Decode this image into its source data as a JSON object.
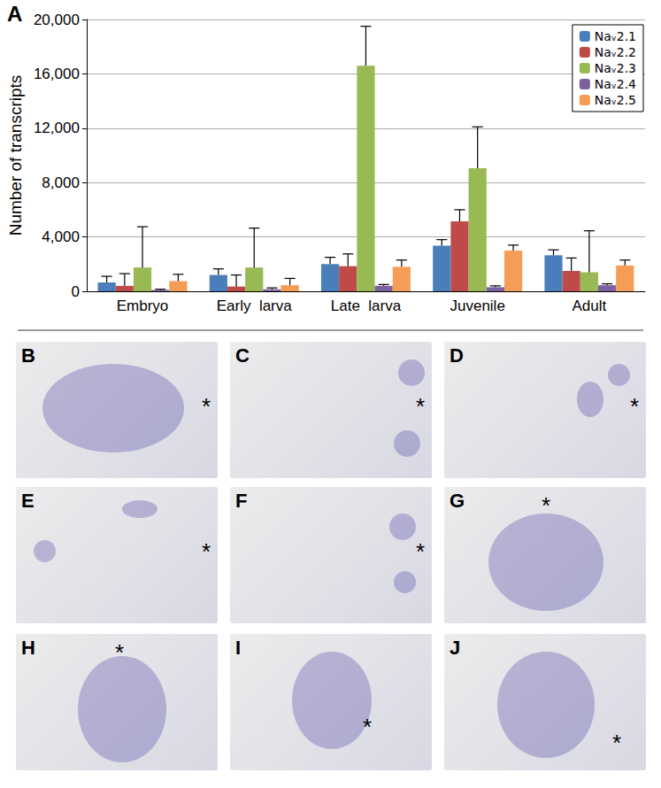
{
  "chart_data": {
    "type": "bar",
    "categories": [
      "Embryo",
      "Early  larva",
      "Late  larva",
      "Juvenile",
      "Adult"
    ],
    "y_label": "Number of transcripts",
    "ylim": [
      0,
      20000
    ],
    "yticks": [
      0,
      {
        "value": 4000,
        "label": "4,000"
      },
      {
        "value": 8000,
        "label": "8,000"
      },
      {
        "value": 12000,
        "label": "12,000"
      },
      {
        "value": 16000,
        "label": "16,000"
      },
      {
        "value": 20000,
        "label": "20,000"
      }
    ],
    "grid": true,
    "legend": "upper right",
    "series": [
      {
        "name": "Naᵥ2.1",
        "color": "#4a7ebb",
        "values": [
          650,
          1200,
          2000,
          3350,
          2650
        ],
        "errors": [
          450,
          450,
          500,
          450,
          400
        ]
      },
      {
        "name": "Naᵥ2.2",
        "color": "#be4b48",
        "values": [
          400,
          350,
          1850,
          5150,
          1500
        ],
        "errors": [
          900,
          850,
          900,
          850,
          950
        ]
      },
      {
        "name": "Naᵥ2.3",
        "color": "#98b954",
        "values": [
          1750,
          1750,
          16600,
          9050,
          1400
        ],
        "errors": [
          3000,
          2900,
          2900,
          3050,
          3050
        ]
      },
      {
        "name": "Naᵥ2.4",
        "color": "#7d60a0",
        "values": [
          100,
          150,
          400,
          300,
          450
        ],
        "errors": [
          50,
          100,
          100,
          100,
          100
        ]
      },
      {
        "name": "Naᵥ2.5",
        "color": "#f59d56",
        "values": [
          750,
          450,
          1800,
          3000,
          1900
        ],
        "errors": [
          500,
          500,
          500,
          400,
          400
        ]
      }
    ]
  },
  "figure": {
    "panels": [
      {
        "label": "A"
      },
      {
        "label": "B",
        "annotation": "*"
      },
      {
        "label": "C",
        "annotation": "*"
      },
      {
        "label": "D",
        "annotation": "*"
      },
      {
        "label": "E",
        "annotation": "*"
      },
      {
        "label": "F",
        "annotation": "*"
      },
      {
        "label": "G",
        "annotation": "*"
      },
      {
        "label": "H",
        "annotation": "*"
      },
      {
        "label": "I",
        "annotation": "*"
      },
      {
        "label": "J",
        "annotation": "*"
      }
    ]
  }
}
